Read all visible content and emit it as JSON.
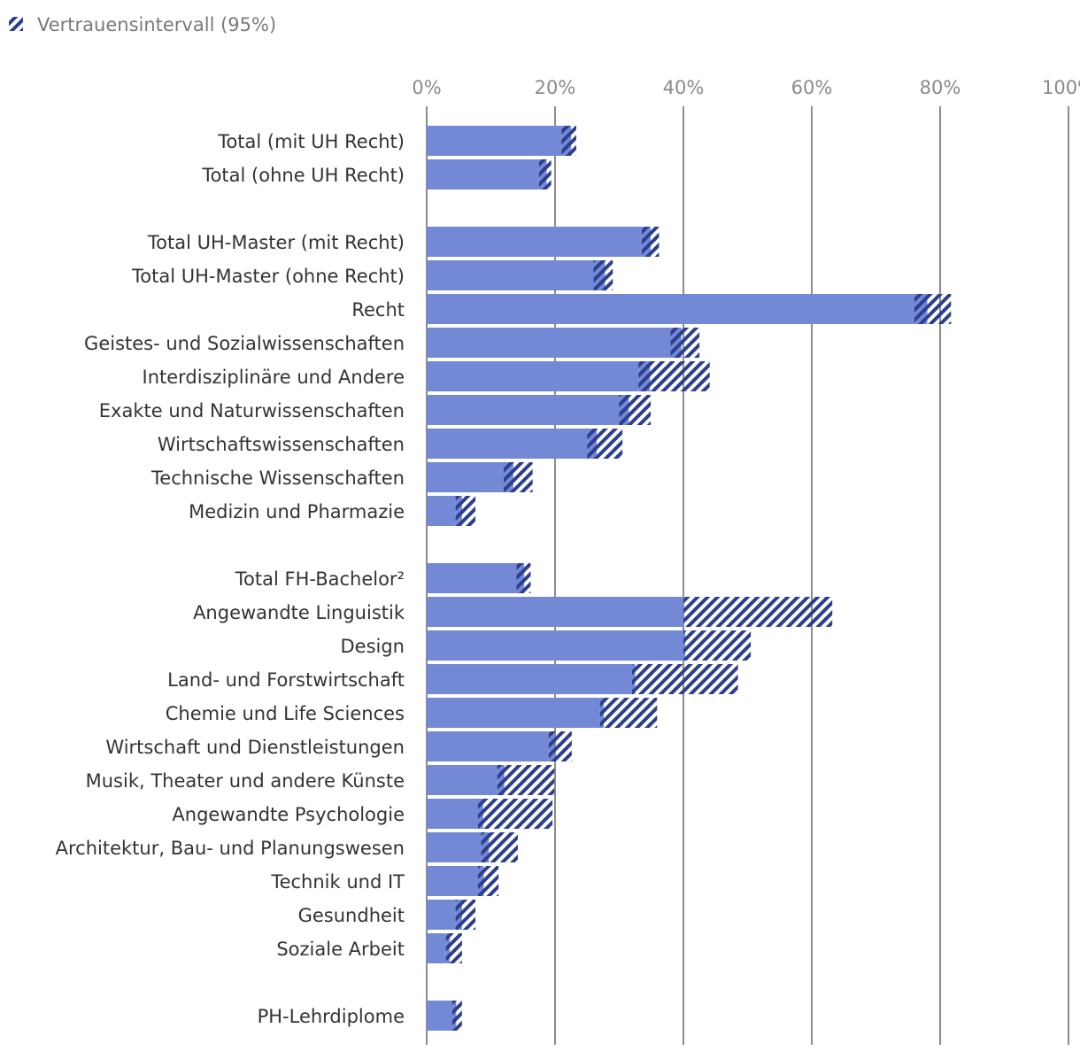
{
  "chart_data": {
    "type": "bar",
    "orientation": "horizontal",
    "legend": [
      {
        "label": "Vertrauensintervall (95%)",
        "style": "hatched",
        "position": "top-left"
      }
    ],
    "x_axis": {
      "ticks": [
        0,
        20,
        40,
        60,
        80,
        100
      ],
      "tick_labels": [
        "0%",
        "20%",
        "40%",
        "60%",
        "80%",
        "100%"
      ],
      "xlim": [
        0,
        100
      ],
      "position": "top",
      "grid": true
    },
    "categories": [
      {
        "label": "Total (mit UH Recht)",
        "value": 21.0,
        "ci_low": 22.5,
        "ci_high": 23.3
      },
      {
        "label": "Total (ohne UH Recht)",
        "value": 17.5,
        "ci_low": 18.7,
        "ci_high": 19.4
      },
      {
        "label": "Total UH-Master (mit Recht)",
        "value": 33.5,
        "ci_low": 34.9,
        "ci_high": 36.2
      },
      {
        "label": "Total UH-Master (ohne Recht)",
        "value": 26.0,
        "ci_low": 27.8,
        "ci_high": 29.0
      },
      {
        "label": "Recht",
        "value": 76.0,
        "ci_low": 78.0,
        "ci_high": 81.7
      },
      {
        "label": "Geistes- und Sozialwissenschaften",
        "value": 38.0,
        "ci_low": 39.7,
        "ci_high": 42.5
      },
      {
        "label": "Interdisziplinäre und Andere",
        "value": 33.0,
        "ci_low": 34.8,
        "ci_high": 44.1
      },
      {
        "label": "Exakte und Naturwissenschaften",
        "value": 30.0,
        "ci_low": 31.5,
        "ci_high": 34.9
      },
      {
        "label": "Wirtschaftswissenschaften",
        "value": 25.0,
        "ci_low": 26.5,
        "ci_high": 30.5
      },
      {
        "label": "Technische Wissenschaften",
        "value": 12.0,
        "ci_low": 13.5,
        "ci_high": 16.5
      },
      {
        "label": "Medizin und Pharmazie",
        "value": 4.5,
        "ci_low": 5.5,
        "ci_high": 7.6
      },
      {
        "label": "Total FH-Bachelor²",
        "value": 14.0,
        "ci_low": 15.2,
        "ci_high": 16.2
      },
      {
        "label": "Angewandte Linguistik",
        "value": 40.0,
        "ci_low": 40.0,
        "ci_high": 63.2
      },
      {
        "label": "Design",
        "value": 40.0,
        "ci_low": 40.3,
        "ci_high": 50.5
      },
      {
        "label": "Land- und Forstwirtschaft",
        "value": 32.0,
        "ci_low": 32.5,
        "ci_high": 48.5
      },
      {
        "label": "Chemie und Life Sciences",
        "value": 27.0,
        "ci_low": 27.6,
        "ci_high": 35.9
      },
      {
        "label": "Wirtschaft und Dienstleistungen",
        "value": 19.0,
        "ci_low": 20.0,
        "ci_high": 22.6
      },
      {
        "label": "Musik, Theater und andere Künste",
        "value": 11.0,
        "ci_low": 12.1,
        "ci_high": 19.9
      },
      {
        "label": "Angewandte Psychologie",
        "value": 8.0,
        "ci_low": 8.8,
        "ci_high": 19.6
      },
      {
        "label": "Architektur, Bau- und Planungswesen",
        "value": 8.5,
        "ci_low": 9.7,
        "ci_high": 14.2
      },
      {
        "label": "Technik und IT",
        "value": 8.0,
        "ci_low": 8.9,
        "ci_high": 11.2
      },
      {
        "label": "Gesundheit",
        "value": 4.5,
        "ci_low": 5.5,
        "ci_high": 7.6
      },
      {
        "label": "Soziale Arbeit",
        "value": 3.0,
        "ci_low": 3.6,
        "ci_high": 5.5
      },
      {
        "label": "PH-Lehrdiplome",
        "value": 4.0,
        "ci_low": 4.6,
        "ci_high": 5.5
      }
    ],
    "group_breaks_after": [
      "Total (ohne UH Recht)",
      "Medizin und Pharmazie",
      "Soziale Arbeit"
    ],
    "colors": {
      "bar": "#7389d6",
      "hatch": "#2c3e8c",
      "grid": "#8c8c8c"
    }
  }
}
